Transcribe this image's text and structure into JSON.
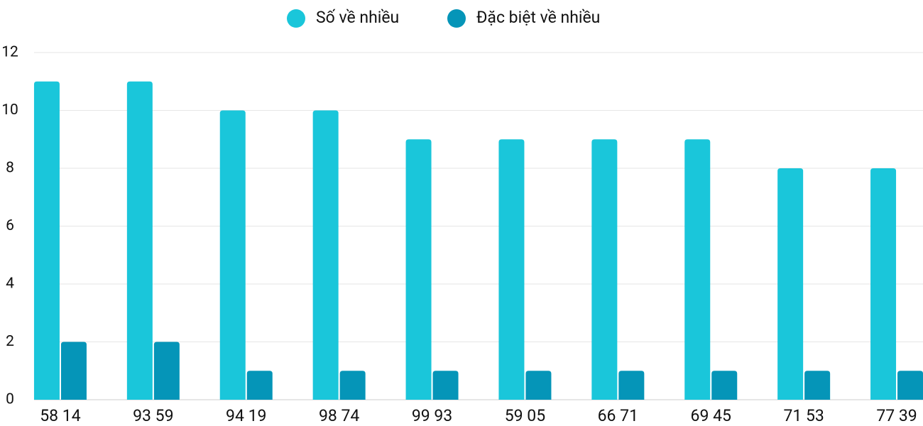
{
  "chart_data": {
    "type": "bar",
    "categories": [
      "58 14",
      "93 59",
      "94 19",
      "98 74",
      "99 93",
      "59 05",
      "66 71",
      "69 45",
      "71 53",
      "77 39"
    ],
    "series": [
      {
        "name": "Số về nhiều",
        "color": "#1ac6da",
        "values": [
          11,
          11,
          10,
          10,
          9,
          9,
          9,
          9,
          8,
          8
        ]
      },
      {
        "name": "Đặc biệt về nhiều",
        "color": "#0595b8",
        "values": [
          2,
          2,
          1,
          1,
          1,
          1,
          1,
          1,
          1,
          1
        ]
      }
    ],
    "ylim": [
      0,
      12
    ],
    "yticks": [
      0,
      2,
      4,
      6,
      8,
      10,
      12
    ],
    "grid": true,
    "legend": "top"
  }
}
